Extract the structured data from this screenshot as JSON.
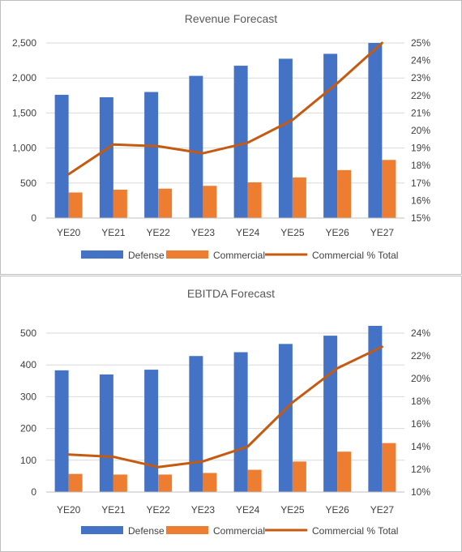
{
  "colors": {
    "defense": "#4472C4",
    "commercial": "#ED7D31",
    "line": "#C55A11",
    "grid": "#d9d9d9"
  },
  "chart_data": [
    {
      "type": "bar",
      "title": "Revenue Forecast",
      "categories": [
        "YE20",
        "YE21",
        "YE22",
        "YE23",
        "YE24",
        "YE25",
        "YE26",
        "YE27"
      ],
      "series": [
        {
          "name": "Defense",
          "type": "bar",
          "axis": "left",
          "values": [
            1760,
            1725,
            1800,
            2030,
            2175,
            2275,
            2345,
            2500
          ]
        },
        {
          "name": "Commercial",
          "type": "bar",
          "axis": "left",
          "values": [
            365,
            405,
            420,
            460,
            510,
            580,
            685,
            830
          ]
        },
        {
          "name": "Commercial % Total",
          "type": "line",
          "axis": "right",
          "values": [
            17.5,
            19.2,
            19.1,
            18.7,
            19.3,
            20.6,
            22.7,
            25.0
          ]
        }
      ],
      "ylim_left": [
        0,
        2500
      ],
      "yticks_left": [
        "0",
        "500",
        "1,000",
        "1,500",
        "2,000",
        "2,500"
      ],
      "ylim_right": [
        15,
        25
      ],
      "yticks_right": [
        "15%",
        "16%",
        "17%",
        "18%",
        "19%",
        "20%",
        "21%",
        "22%",
        "23%",
        "24%",
        "25%"
      ],
      "grid": true,
      "legend": "bottom"
    },
    {
      "type": "bar",
      "title": "EBITDA Forecast",
      "categories": [
        "YE20",
        "YE21",
        "YE22",
        "YE23",
        "YE24",
        "YE25",
        "YE26",
        "YE27"
      ],
      "series": [
        {
          "name": "Defense",
          "type": "bar",
          "axis": "left",
          "values": [
            383,
            370,
            385,
            428,
            440,
            466,
            492,
            523
          ]
        },
        {
          "name": "Commercial",
          "type": "bar",
          "axis": "left",
          "values": [
            57,
            55,
            55,
            60,
            70,
            96,
            127,
            154
          ]
        },
        {
          "name": "Commercial % Total",
          "type": "line",
          "axis": "right",
          "values": [
            13.3,
            13.1,
            12.2,
            12.7,
            14.0,
            17.9,
            20.9,
            22.8
          ]
        }
      ],
      "ylim_left": [
        0,
        500
      ],
      "yticks_left": [
        "0",
        "100",
        "200",
        "300",
        "400",
        "500"
      ],
      "ylim_right": [
        10,
        24
      ],
      "yticks_right": [
        "10%",
        "12%",
        "14%",
        "16%",
        "18%",
        "20%",
        "22%",
        "24%"
      ],
      "grid": true,
      "legend": "bottom"
    }
  ]
}
